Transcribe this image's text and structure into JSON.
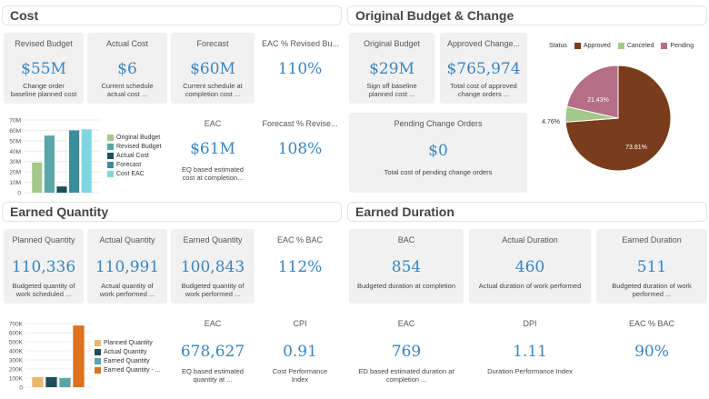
{
  "colors": {
    "accent": "#3a85c0"
  },
  "sections": {
    "cost": "Cost",
    "budget_change": "Original Budget & Change",
    "earned_quantity": "Earned Quantity",
    "earned_duration": "Earned Duration"
  },
  "cost_tiles": [
    {
      "title": "Revised Budget",
      "value": "$55M",
      "desc1": "Change order",
      "desc2": "baseline planned cost"
    },
    {
      "title": "Actual Cost",
      "value": "$6",
      "desc1": "Current schedule",
      "desc2": "actual cost    ..."
    },
    {
      "title": "Forecast",
      "value": "$60M",
      "desc1": "Current schedule at",
      "desc2": "completion cost   ..."
    },
    {
      "title": "EAC % Revised Bu...",
      "value": "110%",
      "desc1": "",
      "desc2": ""
    },
    {
      "title": "EAC",
      "value": "$61M",
      "desc1": "EQ based estimated",
      "desc2": "cost at completion..."
    },
    {
      "title": "Forecast % Revise...",
      "value": "108%",
      "desc1": "",
      "desc2": ""
    }
  ],
  "budget_tiles": [
    {
      "title": "Original Budget",
      "value": "$29M",
      "desc1": "Sign off baseline",
      "desc2": "planned cost    ..."
    },
    {
      "title": "Approved Change...",
      "value": "$765,974",
      "desc1": "Total cost of approved",
      "desc2": "change orders    ..."
    },
    {
      "title": "Pending Change Orders",
      "value": "$0",
      "desc1": "Total cost of pending change orders",
      "desc2": ""
    }
  ],
  "eq_tiles": [
    {
      "title": "Planned Quantity",
      "value": "110,336",
      "desc1": "Budgeted quantity of",
      "desc2": "work scheduled   ..."
    },
    {
      "title": "Actual Quantity",
      "value": "110,991",
      "desc1": "Actual quantity of",
      "desc2": "work performed   ..."
    },
    {
      "title": "Earned Quantity",
      "value": "100,843",
      "desc1": "Budgeted quantity of",
      "desc2": "work performed   ..."
    },
    {
      "title": "EAC % BAC",
      "value": "112%",
      "desc1": "",
      "desc2": ""
    },
    {
      "title": "EAC",
      "value": "678,627",
      "desc1": "EQ based estimated",
      "desc2": "quantity at      ..."
    },
    {
      "title": "CPI",
      "value": "0.91",
      "desc1": "Cost Performance Index",
      "desc2": ""
    }
  ],
  "ed_tiles": [
    {
      "title": "BAC",
      "value": "854",
      "desc1": "Budgeted duration at completion",
      "desc2": ""
    },
    {
      "title": "Actual Duration",
      "value": "460",
      "desc1": "Actual duration of work performed",
      "desc2": ""
    },
    {
      "title": "Earned Duration",
      "value": "511",
      "desc1": "Budgeted duration of work",
      "desc2": "performed       ..."
    },
    {
      "title": "EAC",
      "value": "769",
      "desc1": "ED based estimated duration at",
      "desc2": "completion        ..."
    },
    {
      "title": "DPI",
      "value": "1.11",
      "desc1": "Duration Performance Index",
      "desc2": ""
    },
    {
      "title": "EAC % BAC",
      "value": "90%",
      "desc1": "",
      "desc2": ""
    }
  ],
  "chart_data": [
    {
      "type": "bar",
      "categories": [
        "Original Budget",
        "Revised Budget",
        "Actual Cost",
        "Forecast",
        "Cost EAC"
      ],
      "values": [
        29,
        55,
        6,
        60,
        61
      ],
      "colors": [
        "#a3c98a",
        "#5aa7a7",
        "#1f4e5a",
        "#3c8d9c",
        "#7fd6e2"
      ],
      "yticks": [
        "0",
        "10M",
        "20M",
        "30M",
        "40M",
        "50M",
        "60M",
        "70M"
      ],
      "ylim": [
        0,
        70
      ]
    },
    {
      "type": "pie",
      "legend_title": "Status",
      "labels": [
        "Approved",
        "Canceled",
        "Pending"
      ],
      "values": [
        73.81,
        4.76,
        21.43
      ],
      "value_labels": [
        "73.81%",
        "4.76%",
        "21.43%"
      ],
      "colors": [
        "#7a3d1c",
        "#a3c98a",
        "#b56e85"
      ]
    },
    {
      "type": "bar",
      "categories": [
        "Planned Quantity",
        "Actual Quantity",
        "Earned Quantity",
        "Earned Quantity - ..."
      ],
      "values": [
        110336,
        110991,
        100843,
        678627
      ],
      "colors": [
        "#e8b86e",
        "#1f4e5a",
        "#5aa7a7",
        "#d9731f"
      ],
      "yticks": [
        "0",
        "100K",
        "200K",
        "300K",
        "400K",
        "500K",
        "600K",
        "700K"
      ],
      "ylim": [
        0,
        700000
      ]
    }
  ]
}
